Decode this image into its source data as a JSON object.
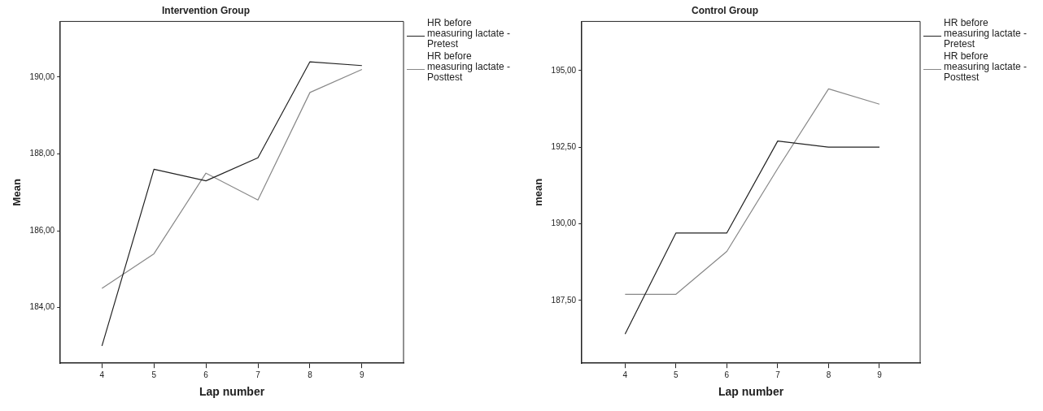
{
  "chart_data": [
    {
      "type": "line",
      "title": "Intervention Group",
      "xlabel": "Lap number",
      "ylabel": "Mean",
      "x": [
        4,
        5,
        6,
        7,
        8,
        9
      ],
      "xlim": [
        3.2,
        9.8
      ],
      "xticks": [
        4,
        5,
        6,
        7,
        8,
        9
      ],
      "ylim": [
        182.55,
        191.45
      ],
      "yticks": [
        {
          "value": 184,
          "label": "184,00"
        },
        {
          "value": 186,
          "label": "186,00"
        },
        {
          "value": 188,
          "label": "188,00"
        },
        {
          "value": 190,
          "label": "190,00"
        }
      ],
      "grid": false,
      "legend": "right",
      "marker": "none",
      "series": [
        {
          "name": "HR before measuring lactate - Pretest",
          "color": "#222222",
          "values": [
            183.0,
            187.6,
            187.3,
            187.9,
            190.4,
            190.3
          ]
        },
        {
          "name": "HR before measuring lactate - Posttest",
          "color": "#888888",
          "values": [
            184.5,
            185.4,
            187.5,
            186.8,
            189.6,
            190.2
          ]
        }
      ]
    },
    {
      "type": "line",
      "title": "Control Group",
      "xlabel": "Lap number",
      "ylabel": "mean",
      "x": [
        4,
        5,
        6,
        7,
        8,
        9
      ],
      "xlim": [
        3.15,
        9.8
      ],
      "xticks": [
        4,
        5,
        6,
        7,
        8,
        9
      ],
      "ylim": [
        185.45,
        196.6
      ],
      "yticks": [
        {
          "value": 187.5,
          "label": "187,50"
        },
        {
          "value": 190,
          "label": "190,00"
        },
        {
          "value": 192.5,
          "label": "192,50"
        },
        {
          "value": 195,
          "label": "195,00"
        }
      ],
      "grid": false,
      "legend": "right",
      "marker": "none",
      "series": [
        {
          "name": "HR before measuring lactate - Pretest",
          "color": "#222222",
          "values": [
            186.4,
            189.7,
            189.7,
            192.7,
            192.5,
            192.5
          ]
        },
        {
          "name": "HR before measuring lactate - Posttest",
          "color": "#888888",
          "values": [
            187.7,
            187.7,
            189.1,
            191.8,
            194.4,
            193.9
          ]
        }
      ]
    }
  ]
}
